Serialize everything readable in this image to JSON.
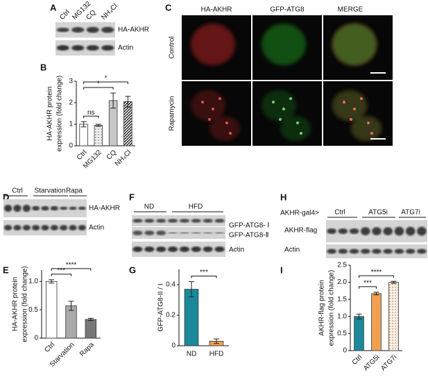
{
  "panel_labels": [
    "A",
    "B",
    "C",
    "D",
    "E",
    "F",
    "G",
    "H",
    "I"
  ],
  "blot_a": {
    "lanes": [
      "Ctrl",
      "MG132",
      "CQ",
      "NH₄Cl"
    ],
    "rows": [
      "HA-AKHR",
      "Actin"
    ]
  },
  "microscopy": {
    "columns": [
      "HA-AKHR",
      "GFP-ATG8",
      "MERGE"
    ],
    "rows": [
      "Control",
      "Rapamycin"
    ]
  },
  "blot_d": {
    "groups": [
      "Ctrl",
      "Starvation",
      "Rapa"
    ],
    "rows": [
      "HA-AKHR",
      "Actin"
    ]
  },
  "blot_f": {
    "groups": [
      "ND",
      "HFD"
    ],
    "rows": [
      "GFP-ATG8- Ⅰ",
      "GFP-ATG8-Ⅱ",
      "Actin"
    ]
  },
  "blot_h": {
    "genotype": "AKHR-gal4>",
    "groups": [
      "Ctrl",
      "ATG5i",
      "ATG7i"
    ],
    "rows": [
      "AKHR-flag",
      "Actin"
    ]
  },
  "chart_data": [
    {
      "type": "bar",
      "ylabel": [
        "HA-AKHR protein",
        "expression (fold change)"
      ],
      "categories": [
        "Ctrl",
        "MG132",
        "CQ",
        "NH₄Cl"
      ],
      "values": [
        1.0,
        0.95,
        2.1,
        2.05
      ],
      "errors": [
        0.12,
        0.05,
        0.35,
        0.25
      ],
      "bar_colors": [
        "#ffffff",
        "#9a9a9a",
        "#c8c8c8",
        "#000000"
      ],
      "bar_patterns": [
        "solid",
        "dots",
        "solid",
        "hatch"
      ],
      "ylim": [
        0,
        3
      ],
      "yticks": [
        0,
        1,
        2,
        3
      ],
      "annotations": [
        {
          "text": "ns",
          "between": [
            "Ctrl",
            "MG132"
          ]
        },
        {
          "text": "*",
          "between": [
            "Ctrl",
            "CQ"
          ]
        },
        {
          "text": "*",
          "between": [
            "Ctrl",
            "NH₄Cl"
          ]
        }
      ]
    },
    {
      "type": "bar",
      "ylabel": [
        "HA-AKHR protein",
        "expression (fold change)"
      ],
      "categories": [
        "Ctrl",
        "Starvation",
        "Rapa"
      ],
      "values": [
        1.0,
        0.57,
        0.33
      ],
      "errors": [
        0.03,
        0.08,
        0.02
      ],
      "bar_colors": [
        "#ffffff",
        "#aaaaaa",
        "#777777"
      ],
      "bar_patterns": [
        "solid",
        "solid",
        "solid"
      ],
      "ylim": [
        0,
        1.2
      ],
      "yticks": [
        0,
        0.5,
        {
          "value": 1,
          "label": "1.0"
        }
      ],
      "annotations": [
        {
          "text": "***",
          "between": [
            "Ctrl",
            "Starvation"
          ]
        },
        {
          "text": "****",
          "between": [
            "Ctrl",
            "Rapa"
          ]
        }
      ]
    },
    {
      "type": "bar",
      "ylabel": [
        "GFP-ATG8-II / I"
      ],
      "categories": [
        "ND",
        "HFD"
      ],
      "values": [
        0.37,
        0.03
      ],
      "errors": [
        0.05,
        0.015
      ],
      "bar_colors": [
        "#1a8a9a",
        "#f0a050"
      ],
      "bar_patterns": [
        "solid",
        "solid"
      ],
      "ylim": [
        0,
        0.5
      ],
      "yticks": [
        0,
        0.2,
        0.4
      ],
      "annotations": [
        {
          "text": "***",
          "between": [
            "ND",
            "HFD"
          ]
        }
      ]
    },
    {
      "type": "bar",
      "ylabel": [
        "AKHR-flag protein",
        "expression (fold change)"
      ],
      "categories": [
        "Ctrl",
        "ATG5i",
        "ATG7i"
      ],
      "values": [
        1.0,
        1.67,
        2.0
      ],
      "errors": [
        0.07,
        0.04,
        0.03
      ],
      "bar_colors": [
        "#1a8a9a",
        "#f0a050",
        "#e8a060"
      ],
      "bar_patterns": [
        "solid",
        "solid",
        "dots"
      ],
      "ylim": [
        0,
        2.5
      ],
      "yticks": [
        0,
        0.5,
        {
          "value": 1,
          "label": "1.0"
        },
        1.5,
        {
          "value": 2,
          "label": "2.0"
        },
        2.5
      ],
      "annotations": [
        {
          "text": "***",
          "between": [
            "Ctrl",
            "ATG5i"
          ]
        },
        {
          "text": "****",
          "between": [
            "Ctrl",
            "ATG7i"
          ]
        }
      ]
    }
  ]
}
